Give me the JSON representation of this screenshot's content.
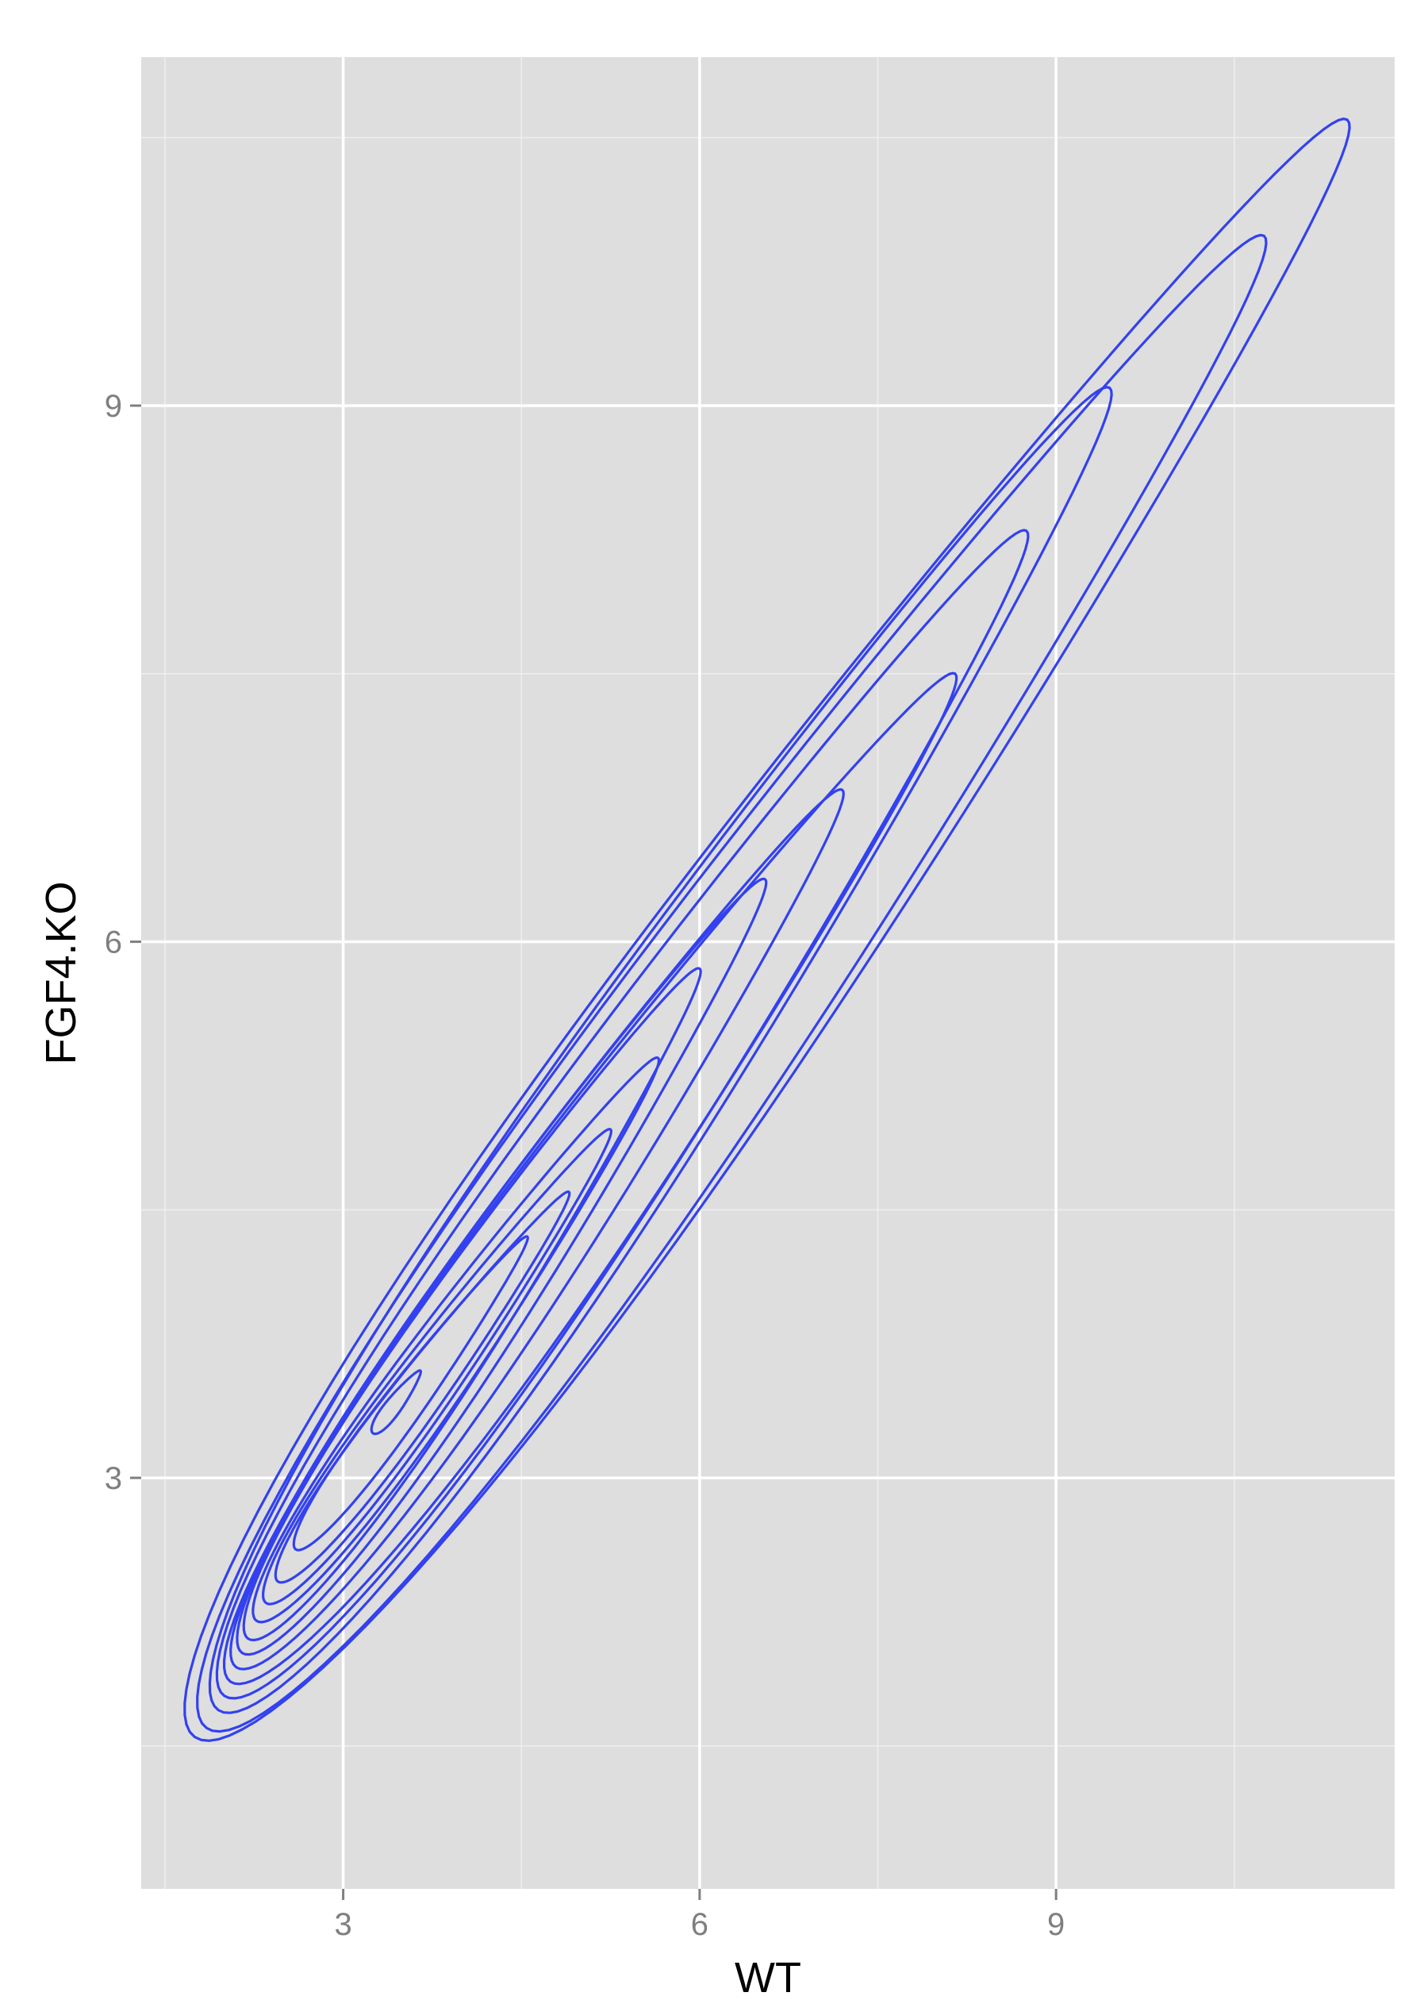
{
  "chart_data": {
    "type": "contour",
    "title": "",
    "xlabel": "WT",
    "ylabel": "FGF4.KO",
    "xlim": [
      1.3,
      11.85
    ],
    "ylim": [
      0.7,
      10.95
    ],
    "x_ticks": [
      3,
      6,
      9
    ],
    "y_ticks": [
      3,
      6,
      9
    ],
    "x_tick_labels": [
      "3",
      "6",
      "9"
    ],
    "y_tick_labels": [
      "3",
      "6",
      "9"
    ],
    "grid": true,
    "panel_background": "#dedede",
    "grid_color": "#ffffff",
    "line_color": "#3341f0",
    "contour_model": {
      "description": "2D density contours of an elongated distribution: mode near WT=2.4, FGF4.KO=2.1; each successive level is a larger ellipse along the diagonal",
      "levels": [
        {
          "level": 1,
          "x_range": [
            1.75,
            11.45
          ],
          "y_range": [
            1.55,
            10.6
          ]
        },
        {
          "level": 2,
          "x_range": [
            1.85,
            10.75
          ],
          "y_range": [
            1.6,
            9.95
          ]
        },
        {
          "level": 3,
          "x_range": [
            1.95,
            9.45
          ],
          "y_range": [
            1.7,
            9.1
          ]
        },
        {
          "level": 4,
          "x_range": [
            2.0,
            8.75
          ],
          "y_range": [
            1.78,
            8.3
          ]
        },
        {
          "level": 5,
          "x_range": [
            2.05,
            8.15
          ],
          "y_range": [
            1.86,
            7.5
          ]
        },
        {
          "level": 6,
          "x_range": [
            2.1,
            7.2
          ],
          "y_range": [
            1.94,
            6.85
          ]
        },
        {
          "level": 7,
          "x_range": [
            2.15,
            6.55
          ],
          "y_range": [
            2.02,
            6.35
          ]
        },
        {
          "level": 8,
          "x_range": [
            2.2,
            6.0
          ],
          "y_range": [
            2.1,
            5.85
          ]
        },
        {
          "level": 9,
          "x_range": [
            2.27,
            5.65
          ],
          "y_range": [
            2.2,
            5.35
          ]
        },
        {
          "level": 10,
          "x_range": [
            2.35,
            5.25
          ],
          "y_range": [
            2.3,
            4.95
          ]
        },
        {
          "level": 11,
          "x_range": [
            2.45,
            4.9
          ],
          "y_range": [
            2.42,
            4.6
          ]
        },
        {
          "level": 12,
          "x_range": [
            2.6,
            4.55
          ],
          "y_range": [
            2.6,
            4.35
          ]
        },
        {
          "level": 13,
          "x_range": [
            3.25,
            3.65
          ],
          "y_range": [
            3.25,
            3.6
          ]
        }
      ]
    }
  }
}
